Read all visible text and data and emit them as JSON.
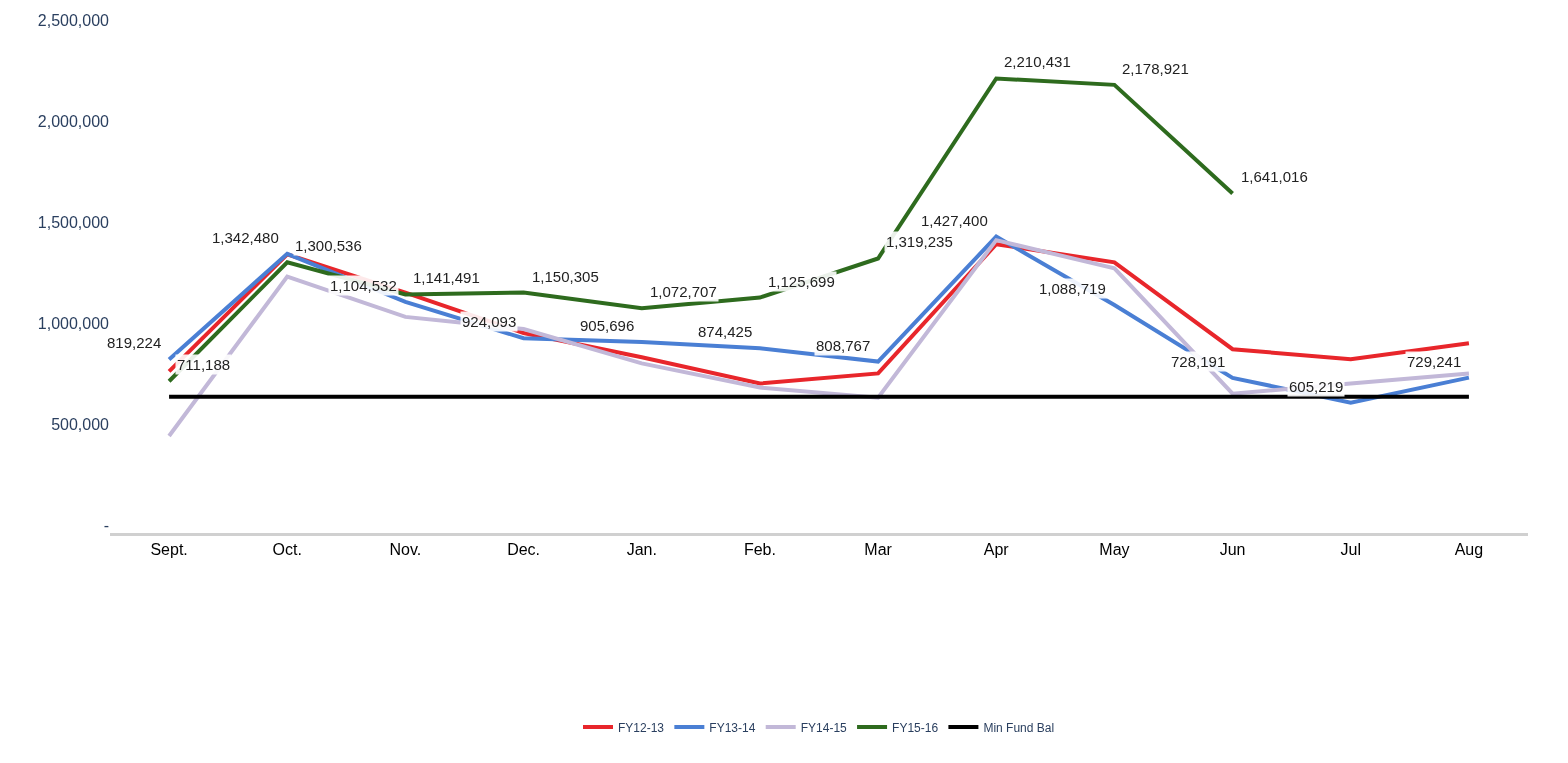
{
  "chart_data": {
    "type": "line",
    "categories": [
      "Sept.",
      "Oct.",
      "Nov.",
      "Dec.",
      "Jan.",
      "Feb.",
      "Mar",
      "Apr",
      "May",
      "Jun",
      "Jul",
      "Aug"
    ],
    "ylim": [
      -40000,
      2500000
    ],
    "yticks": [
      {
        "value": 0,
        "label": "-"
      },
      {
        "value": 500000,
        "label": "500,000"
      },
      {
        "value": 1000000,
        "label": "1,000,000"
      },
      {
        "value": 1500000,
        "label": "1,500,000"
      },
      {
        "value": 2000000,
        "label": "2,000,000"
      },
      {
        "value": 2500000,
        "label": "2,500,000"
      }
    ],
    "legend": "bottom",
    "marker": "none",
    "line_style": "solid",
    "series": [
      {
        "name": "FY12-13",
        "color": "#e8262b",
        "values": [
          760000,
          1340000,
          1150000,
          950000,
          830000,
          700000,
          750000,
          1390000,
          1300000,
          870000,
          820000,
          900000
        ]
      },
      {
        "name": "FY13-14",
        "color": "#4a7fd4",
        "values": [
          819224,
          1342480,
          1104532,
          924093,
          905696,
          874425,
          808767,
          1427400,
          1088719,
          728191,
          605219,
          729241
        ],
        "value_labels": [
          "819,224",
          "1,342,480",
          "1,104,532",
          "924,093",
          "905,696",
          "874,425",
          "808,767",
          "1,427,400",
          "1,088,719",
          "728,191",
          "605,219",
          "729,241"
        ]
      },
      {
        "name": "FY14-15",
        "color": "#c2b8d8",
        "values": [
          440000,
          1230000,
          1030000,
          970000,
          800000,
          680000,
          630000,
          1410000,
          1270000,
          650000,
          700000,
          750000
        ]
      },
      {
        "name": "FY15-16",
        "color": "#2e6b1e",
        "values": [
          711188,
          1300536,
          1141491,
          1150305,
          1072707,
          1125699,
          1319235,
          2210431,
          2178921,
          1641016,
          null,
          null
        ],
        "value_labels": [
          "711,188",
          "1,300,536",
          "1,141,491",
          "1,150,305",
          "1,072,707",
          "1,125,699",
          "1,319,235",
          "2,210,431",
          "2,178,921",
          "1,641,016",
          null,
          null
        ]
      },
      {
        "name": "Min Fund Bal",
        "color": "#000000",
        "values": [
          635000,
          635000,
          635000,
          635000,
          635000,
          635000,
          635000,
          635000,
          635000,
          635000,
          635000,
          635000
        ]
      }
    ]
  }
}
